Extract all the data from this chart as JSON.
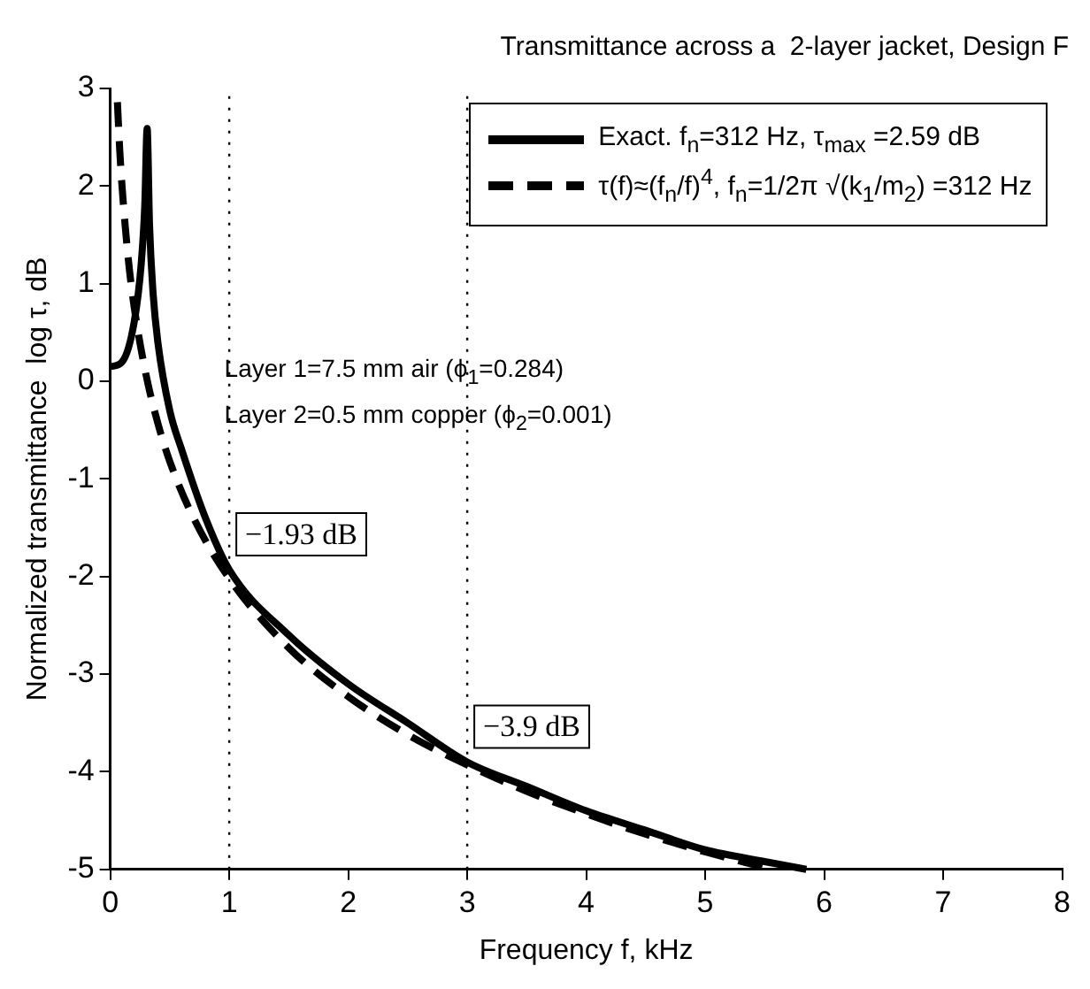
{
  "chart_data": {
    "type": "line",
    "title": "Transmittance across a  2-layer jacket, Design F",
    "xlabel": "Frequency f, kHz",
    "ylabel": "Normalized transmittance  log τ, dB",
    "xlim": [
      0,
      8
    ],
    "xticks": [
      0,
      1,
      2,
      3,
      4,
      5,
      6,
      7,
      8
    ],
    "ylim": [
      -5,
      3
    ],
    "yticks": [
      -5,
      -4,
      -3,
      -2,
      -1,
      0,
      1,
      2,
      3
    ],
    "series": [
      {
        "name": "Exact. f$_{n}$=312 Hz,  τ$_{max}$ =2.59 dB",
        "color": "#000000",
        "line_style": "solid",
        "x": [
          0,
          0.1,
          0.2,
          0.26,
          0.29,
          0.31,
          0.33,
          0.36,
          0.4,
          0.5,
          0.6,
          0.8,
          1,
          1.5,
          2,
          2.5,
          3,
          3.5,
          4,
          4.5,
          5,
          5.5,
          5.85
        ],
        "values": [
          0.15,
          0.2,
          0.6,
          1.2,
          1.8,
          2.59,
          1.6,
          0.9,
          0.4,
          -0.3,
          -0.7,
          -1.4,
          -1.93,
          -2.6,
          -3.1,
          -3.5,
          -3.9,
          -4.15,
          -4.4,
          -4.6,
          -4.8,
          -4.92,
          -5
        ]
      },
      {
        "name": "τ(f)≈(f$_{n}$/f)$^{4}$, f$_{n}$=1/2π √(k$_{1}$/m$_{2}$) =312 Hz",
        "color": "#000000",
        "line_style": "dashed",
        "x": [
          0.06,
          0.08,
          0.1,
          0.15,
          0.2,
          0.3,
          0.4,
          0.5,
          0.7,
          1,
          1.5,
          2,
          2.5,
          3,
          3.5,
          4,
          4.5,
          5,
          5.5
        ],
        "values": [
          2.86,
          2.36,
          1.98,
          1.27,
          0.77,
          0.07,
          -0.43,
          -0.82,
          -1.4,
          -2.02,
          -2.73,
          -3.23,
          -3.62,
          -3.93,
          -4.2,
          -4.43,
          -4.64,
          -4.82,
          -4.98
        ]
      }
    ],
    "ref_lines": [
      {
        "axis": "x",
        "value": 1,
        "line_style": "dotted"
      },
      {
        "axis": "x",
        "value": 3,
        "line_style": "dotted"
      }
    ],
    "annotations": [
      "Layer 1=7.5 mm air (ϕ$_{1}$=0.284)",
      "Layer 2=0.5 mm copper (ϕ$_{2}$=0.001)",
      {
        "text": "−1.93 dB",
        "x": 1,
        "y": -1.93
      },
      {
        "text": "−3.9 dB",
        "x": 3,
        "y": -3.9
      }
    ],
    "legend": "top right",
    "grid": false,
    "marker": "none"
  }
}
